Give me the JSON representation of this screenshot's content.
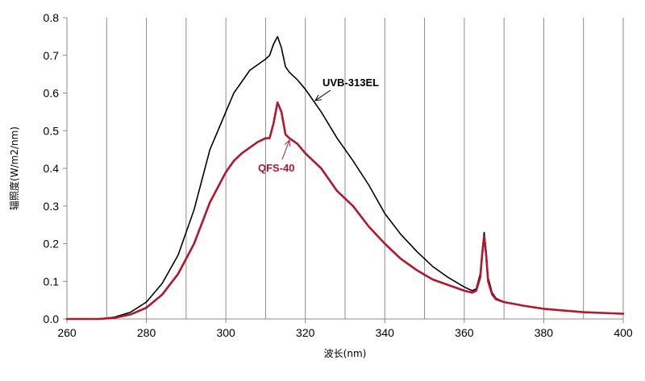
{
  "chart_data": {
    "type": "line",
    "xlabel": "波长(nm)",
    "ylabel": "辐照度(W/m2/nm)",
    "xlim": [
      260,
      400
    ],
    "ylim": [
      0,
      0.8
    ],
    "xticks": [
      260,
      280,
      300,
      320,
      340,
      360,
      380,
      400
    ],
    "yticks": [
      0.0,
      0.1,
      0.2,
      0.3,
      0.4,
      0.5,
      0.6,
      0.7,
      0.8
    ],
    "xtick_labels": [
      "260",
      "280",
      "300",
      "320",
      "340",
      "360",
      "380",
      "400"
    ],
    "ytick_labels": [
      "0.0",
      "0.1",
      "0.2",
      "0.3",
      "0.4",
      "0.5",
      "0.6",
      "0.7",
      "0.8"
    ],
    "vertical_gridlines_every": 10,
    "horizontal_gridlines": false,
    "series": [
      {
        "name": "UVB-313EL",
        "color": "#000000",
        "x": [
          260,
          268,
          272,
          276,
          280,
          284,
          288,
          292,
          296,
          298,
          300,
          302,
          304,
          306,
          308,
          310,
          311,
          312,
          313,
          314,
          315,
          316,
          318,
          320,
          324,
          328,
          332,
          336,
          340,
          344,
          348,
          352,
          356,
          360,
          362,
          363,
          364,
          364.5,
          365,
          365.5,
          366,
          367,
          368,
          370,
          375,
          380,
          390,
          400
        ],
        "y": [
          0.0,
          0.0,
          0.005,
          0.018,
          0.045,
          0.095,
          0.17,
          0.29,
          0.45,
          0.5,
          0.55,
          0.6,
          0.63,
          0.66,
          0.675,
          0.69,
          0.7,
          0.73,
          0.75,
          0.72,
          0.67,
          0.655,
          0.635,
          0.61,
          0.55,
          0.48,
          0.42,
          0.355,
          0.28,
          0.225,
          0.18,
          0.14,
          0.11,
          0.085,
          0.075,
          0.08,
          0.12,
          0.18,
          0.23,
          0.18,
          0.11,
          0.07,
          0.055,
          0.045,
          0.035,
          0.027,
          0.018,
          0.014
        ]
      },
      {
        "name": "QFS-40",
        "color": "#B0182E",
        "x": [
          260,
          268,
          272,
          276,
          280,
          284,
          288,
          292,
          296,
          298,
          300,
          302,
          304,
          306,
          308,
          310,
          311,
          312,
          313,
          314,
          315,
          316,
          318,
          320,
          324,
          328,
          332,
          336,
          340,
          344,
          348,
          352,
          356,
          360,
          362,
          363,
          364,
          364.5,
          365,
          365.5,
          366,
          367,
          368,
          370,
          375,
          380,
          390,
          400
        ],
        "y": [
          0.0,
          0.0,
          0.003,
          0.012,
          0.03,
          0.065,
          0.12,
          0.2,
          0.31,
          0.35,
          0.39,
          0.42,
          0.44,
          0.455,
          0.47,
          0.48,
          0.48,
          0.52,
          0.575,
          0.55,
          0.49,
          0.48,
          0.465,
          0.44,
          0.4,
          0.34,
          0.3,
          0.245,
          0.2,
          0.16,
          0.13,
          0.105,
          0.09,
          0.075,
          0.07,
          0.075,
          0.11,
          0.17,
          0.22,
          0.17,
          0.1,
          0.065,
          0.052,
          0.045,
          0.035,
          0.027,
          0.018,
          0.014
        ]
      }
    ],
    "annotations": [
      {
        "text": "UVB-313EL",
        "color": "#000000",
        "arrow_to": [
          322.5,
          0.58
        ]
      },
      {
        "text": "QFS-40",
        "color": "#B0182E",
        "arrow_to": [
          316.0,
          0.475
        ]
      }
    ]
  }
}
